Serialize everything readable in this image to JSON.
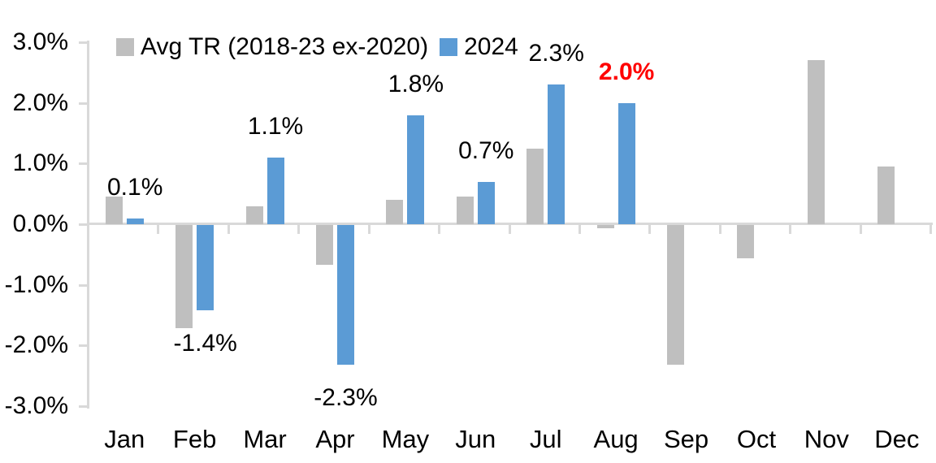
{
  "chart_data": {
    "type": "bar",
    "title": "",
    "xlabel": "",
    "ylabel": "",
    "categories": [
      "Jan",
      "Feb",
      "Mar",
      "Apr",
      "May",
      "Jun",
      "Jul",
      "Aug",
      "Sep",
      "Oct",
      "Nov",
      "Dec"
    ],
    "series": [
      {
        "name": "Avg TR (2018-23 ex-2020)",
        "color": "#bfbfbf",
        "values": [
          0.45,
          -1.7,
          0.3,
          -0.65,
          0.4,
          0.45,
          1.25,
          -0.05,
          -2.3,
          -0.55,
          2.7,
          0.95
        ]
      },
      {
        "name": "2024",
        "color": "#5b9bd5",
        "values": [
          0.1,
          -1.4,
          1.1,
          -2.3,
          1.8,
          0.7,
          2.3,
          2.0,
          null,
          null,
          null,
          null
        ]
      }
    ],
    "data_labels": [
      {
        "text": "0.1%",
        "color": "#000000",
        "bold": false
      },
      {
        "text": "-1.4%",
        "color": "#000000",
        "bold": false
      },
      {
        "text": "1.1%",
        "color": "#000000",
        "bold": false
      },
      {
        "text": "-2.3%",
        "color": "#000000",
        "bold": false
      },
      {
        "text": "1.8%",
        "color": "#000000",
        "bold": false
      },
      {
        "text": "0.7%",
        "color": "#000000",
        "bold": false
      },
      {
        "text": "2.3%",
        "color": "#000000",
        "bold": false
      },
      {
        "text": "2.0%",
        "color": "#ff0000",
        "bold": true
      },
      null,
      null,
      null,
      null
    ],
    "ylim": [
      -3,
      3
    ],
    "yticks": [
      {
        "v": 3,
        "label": "3.0%"
      },
      {
        "v": 2,
        "label": "2.0%"
      },
      {
        "v": 1,
        "label": "1.0%"
      },
      {
        "v": 0,
        "label": "0.0%"
      },
      {
        "v": -1,
        "label": "-1.0%"
      },
      {
        "v": -2,
        "label": "-2.0%"
      },
      {
        "v": -3,
        "label": "-3.0%"
      }
    ],
    "grid": false,
    "legend_position": "top-left",
    "axis_color": "#d9d9d9",
    "text_color": "#000000"
  }
}
